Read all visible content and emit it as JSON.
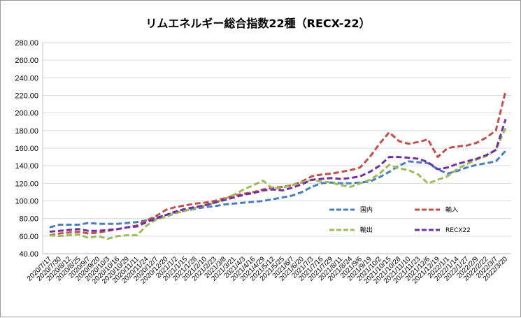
{
  "chart_data": {
    "type": "line",
    "title": "リムエネルギー総合指数22種（RECX-22）",
    "ylim": [
      40,
      280
    ],
    "yticks": [
      "40.00",
      "60.00",
      "80.00",
      "100.00",
      "120.00",
      "140.00",
      "160.00",
      "180.00",
      "200.00",
      "220.00",
      "240.00",
      "260.00",
      "280.00"
    ],
    "grid": true,
    "legend_placement": "bottom-right",
    "categories": [
      "2020/7/17",
      "2020/7/30",
      "2020/8/12",
      "2020/8/25",
      "2020/9/7",
      "2020/9/20",
      "2020/10/3",
      "2020/10/16",
      "2020/10/29",
      "2020/11/11",
      "2020/11/24",
      "2020/12/7",
      "2020/12/20",
      "2021/1/2",
      "2021/1/15",
      "2021/1/28",
      "2021/2/10",
      "2021/2/23",
      "2021/3/8",
      "2021/3/21",
      "2021/4/3",
      "2021/4/16",
      "2021/4/29",
      "2021/5/12",
      "2021/5/25",
      "2021/6/7",
      "2021/6/20",
      "2021/7/3",
      "2021/7/16",
      "2021/7/29",
      "2021/8/11",
      "2021/8/24",
      "2021/9/6",
      "2021/9/19",
      "2021/10/2",
      "2021/10/15",
      "2021/10/28",
      "2021/11/10",
      "2021/11/23",
      "2021/12/6",
      "2021/12/19",
      "2022/1/1",
      "2022/1/14",
      "2022/1/27",
      "2022/2/9",
      "2022/2/22",
      "2022/3/7",
      "2022/3/20"
    ],
    "series": [
      {
        "name": "国内",
        "color": "#4a7ebb",
        "values": [
          70,
          73,
          73,
          73,
          75,
          74,
          74,
          74,
          75,
          76,
          78,
          81,
          84,
          87,
          89,
          91,
          93,
          94,
          96,
          97,
          98,
          99,
          100,
          102,
          104,
          106,
          110,
          116,
          120,
          121,
          120,
          120,
          121,
          122,
          127,
          133,
          140,
          145,
          144,
          143,
          136,
          131,
          134,
          138,
          141,
          143,
          145,
          157
        ]
      },
      {
        "name": "輸入",
        "color": "#c0504d",
        "values": [
          61,
          63,
          64,
          65,
          63,
          64,
          66,
          68,
          70,
          72,
          78,
          83,
          90,
          93,
          95,
          97,
          98,
          100,
          103,
          106,
          108,
          110,
          113,
          115,
          116,
          118,
          122,
          128,
          130,
          131,
          133,
          135,
          138,
          150,
          165,
          178,
          168,
          165,
          167,
          170,
          150,
          160,
          162,
          163,
          166,
          172,
          180,
          225
        ]
      },
      {
        "name": "輸出",
        "color": "#9bbb59",
        "values": [
          61,
          60,
          61,
          62,
          58,
          60,
          57,
          60,
          61,
          61,
          72,
          79,
          82,
          86,
          89,
          92,
          95,
          98,
          102,
          107,
          113,
          118,
          123,
          114,
          115,
          118,
          121,
          124,
          122,
          121,
          118,
          116,
          120,
          124,
          131,
          141,
          137,
          135,
          130,
          120,
          124,
          128,
          136,
          142,
          147,
          151,
          158,
          183
        ]
      },
      {
        "name": "RECX22",
        "color": "#7030a0",
        "values": [
          65,
          66,
          67,
          68,
          66,
          66,
          67,
          68,
          70,
          71,
          76,
          80,
          84,
          88,
          91,
          93,
          95,
          98,
          101,
          104,
          107,
          109,
          112,
          113,
          112,
          115,
          119,
          124,
          125,
          126,
          125,
          126,
          128,
          133,
          140,
          150,
          150,
          149,
          148,
          144,
          136,
          138,
          142,
          145,
          148,
          152,
          158,
          193
        ]
      }
    ]
  }
}
